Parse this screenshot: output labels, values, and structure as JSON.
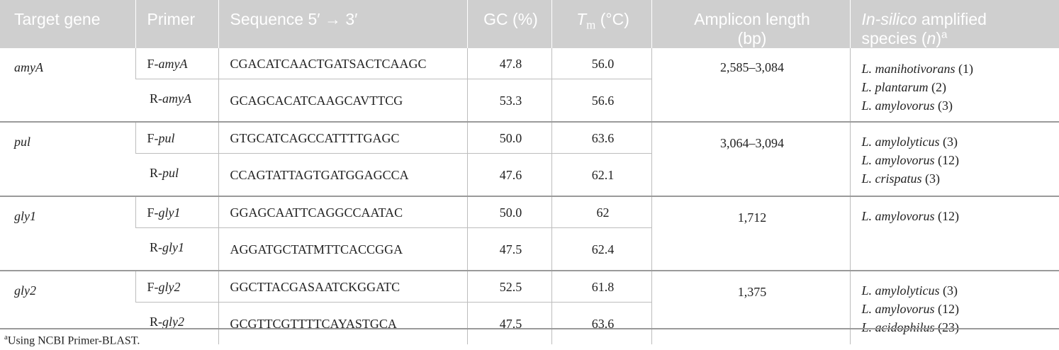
{
  "headers": {
    "target_gene": "Target gene",
    "primer": "Primer",
    "sequence": "Sequence 5′ → 3′",
    "gc": "GC (%)",
    "tm_t": "T",
    "tm_sub": "m",
    "tm_unit": " (°C)",
    "amplicon_line1": "Amplicon length",
    "amplicon_line2": "(bp)",
    "species_italic": "In-silico",
    "species_rest1": " amplified",
    "species_line2a": "species (",
    "species_n": "n",
    "species_line2b": ")",
    "species_sup": "a"
  },
  "groups": [
    {
      "gene": "amyA",
      "amplicon": "2,585–3,084",
      "species": [
        {
          "name": "L. manihotivorans",
          "count": " (1)"
        },
        {
          "name": "L. plantarum",
          "count": " (2)"
        },
        {
          "name": "L. amylovorus",
          "count": " (3)"
        }
      ],
      "primers": [
        {
          "prefix": "F-",
          "gene": "amyA",
          "sequence": "CGACATCAACTGATSACTCAAGC",
          "gc": "47.8",
          "tm": "56.0"
        },
        {
          "prefix": "R-",
          "gene": "amyA",
          "sequence": "GCAGCACATCAAGCAVTTCG",
          "gc": "53.3",
          "tm": "56.6"
        }
      ]
    },
    {
      "gene": "pul",
      "amplicon": "3,064–3,094",
      "species": [
        {
          "name": "L. amylolyticus",
          "count": " (3)"
        },
        {
          "name": "L. amylovorus",
          "count": " (12)"
        },
        {
          "name": "L. crispatus",
          "count": " (3)"
        }
      ],
      "primers": [
        {
          "prefix": "F-",
          "gene": "pul",
          "sequence": "GTGCATCAGCCATTTTGAGC",
          "gc": "50.0",
          "tm": "63.6"
        },
        {
          "prefix": "R-",
          "gene": "pul",
          "sequence": "CCAGTATTAGTGATGGAGCCA",
          "gc": "47.6",
          "tm": "62.1"
        }
      ]
    },
    {
      "gene": "gly1",
      "amplicon": "1,712",
      "species": [
        {
          "name": "L. amylovorus",
          "count": " (12)"
        }
      ],
      "primers": [
        {
          "prefix": "F-",
          "gene": "gly1",
          "sequence": "GGAGCAATTCAGGCCAATAC",
          "gc": "50.0",
          "tm": "62"
        },
        {
          "prefix": "R-",
          "gene": "gly1",
          "sequence": "AGGATGCTATMTTCACCGGA",
          "gc": "47.5",
          "tm": "62.4"
        }
      ]
    },
    {
      "gene": "gly2",
      "amplicon": "1,375",
      "species": [
        {
          "name": "L. amylolyticus",
          "count": " (3)"
        },
        {
          "name": "L. amylovorus",
          "count": " (12)"
        },
        {
          "name": "L. acidophilus",
          "count": " (23)"
        }
      ],
      "primers": [
        {
          "prefix": "F-",
          "gene": "gly2",
          "sequence": "GGCTTACGASAATCKGGATC",
          "gc": "52.5",
          "tm": "61.8"
        },
        {
          "prefix": "R-",
          "gene": "gly2",
          "sequence": "GCGTTCGTTTTCAYASTGCA",
          "gc": "47.5",
          "tm": "63.6"
        }
      ]
    }
  ],
  "footnote": {
    "marker": "a",
    "text": "Using NCBI Primer-BLAST."
  }
}
